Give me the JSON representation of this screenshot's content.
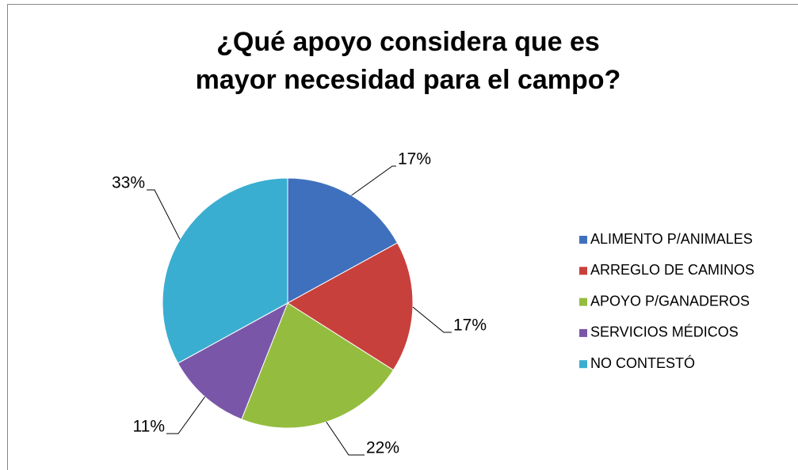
{
  "chart_data": {
    "type": "pie",
    "title": "¿Qué apoyo considera que es mayor necesidad para el campo?",
    "categories": [
      "ALIMENTO P/ANIMALES",
      "ARREGLO DE CAMINOS",
      "APOYO P/GANADEROS",
      "SERVICIOS MÉDICOS",
      "NO CONTESTÓ"
    ],
    "values": [
      17,
      17,
      22,
      11,
      33
    ],
    "value_labels": [
      "17%",
      "17%",
      "22%",
      "11%",
      "33%"
    ],
    "colors": [
      "#3f70bd",
      "#c8403c",
      "#94bd3f",
      "#7a56a8",
      "#3aaed0"
    ],
    "legend": "right"
  }
}
